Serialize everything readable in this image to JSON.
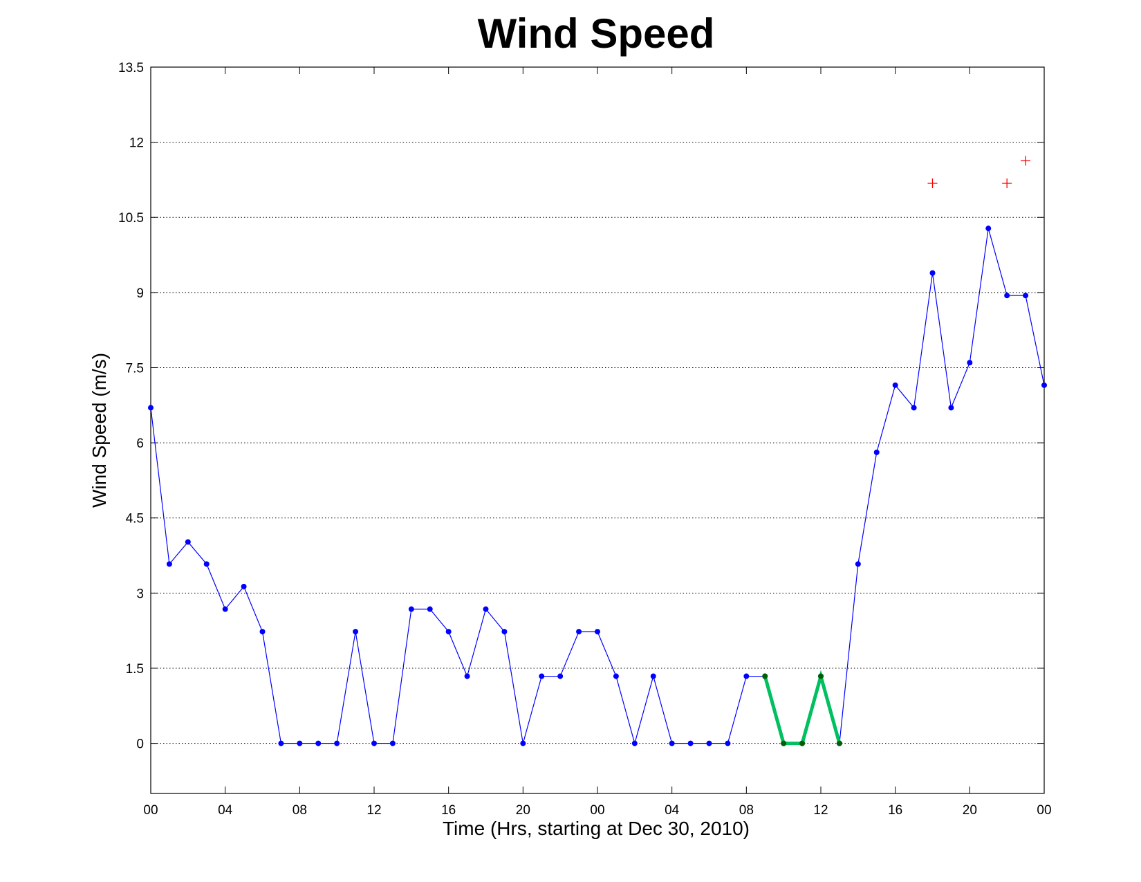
{
  "chart_data": {
    "type": "line",
    "title": "Wind Speed",
    "xlabel": "Time (Hrs, starting at Dec 30, 2010)",
    "ylabel": "Wind Speed (m/s)",
    "xlim": [
      0,
      48
    ],
    "ylim": [
      -1,
      13.5
    ],
    "grid": true,
    "x_ticks": [
      0,
      4,
      8,
      12,
      16,
      20,
      24,
      28,
      32,
      36,
      40,
      44,
      48
    ],
    "x_tick_labels": [
      "00",
      "04",
      "08",
      "12",
      "16",
      "20",
      "00",
      "04",
      "08",
      "12",
      "16",
      "20",
      "00"
    ],
    "y_ticks": [
      0,
      1.5,
      3,
      4.5,
      6,
      7.5,
      9,
      10.5,
      12,
      13.5
    ],
    "y_tick_labels": [
      "0",
      "1.5",
      "3",
      "4.5",
      "6",
      "7.5",
      "9",
      "10.5",
      "12",
      "13.5"
    ],
    "series": [
      {
        "style": "blue line with dot markers",
        "color": "#0000ff",
        "x": [
          0,
          1,
          2,
          3,
          4,
          5,
          6,
          7,
          8,
          9,
          10,
          11,
          12,
          13,
          14,
          15,
          16,
          17,
          18,
          19,
          20,
          21,
          22,
          23,
          24,
          25,
          26,
          27,
          28,
          29,
          30,
          31,
          32,
          33,
          34,
          35,
          36,
          37,
          38,
          39,
          40,
          41,
          42,
          43,
          44,
          45,
          46,
          47,
          48
        ],
        "values": [
          6.7,
          3.58,
          4.02,
          3.58,
          2.68,
          3.13,
          2.23,
          0,
          0,
          0,
          0,
          2.23,
          0,
          0,
          2.68,
          2.68,
          2.23,
          1.34,
          2.68,
          2.23,
          0,
          1.34,
          1.34,
          2.23,
          2.23,
          1.34,
          0,
          1.34,
          0,
          0,
          0,
          0,
          1.34,
          1.34,
          0,
          0,
          1.34,
          0,
          3.58,
          5.81,
          7.15,
          6.7,
          9.39,
          6.7,
          7.6,
          10.28,
          8.94,
          8.94,
          7.15
        ]
      },
      {
        "style": "thick green segment with dark green markers",
        "color": "#00c060",
        "marker_color": "#006000",
        "x": [
          33,
          34,
          35,
          36,
          37
        ],
        "values": [
          1.34,
          0,
          0,
          1.34,
          0
        ]
      },
      {
        "style": "red plus markers",
        "color": "#ff0000",
        "x": [
          42,
          46,
          47
        ],
        "values": [
          11.18,
          11.18,
          11.63
        ]
      }
    ]
  }
}
